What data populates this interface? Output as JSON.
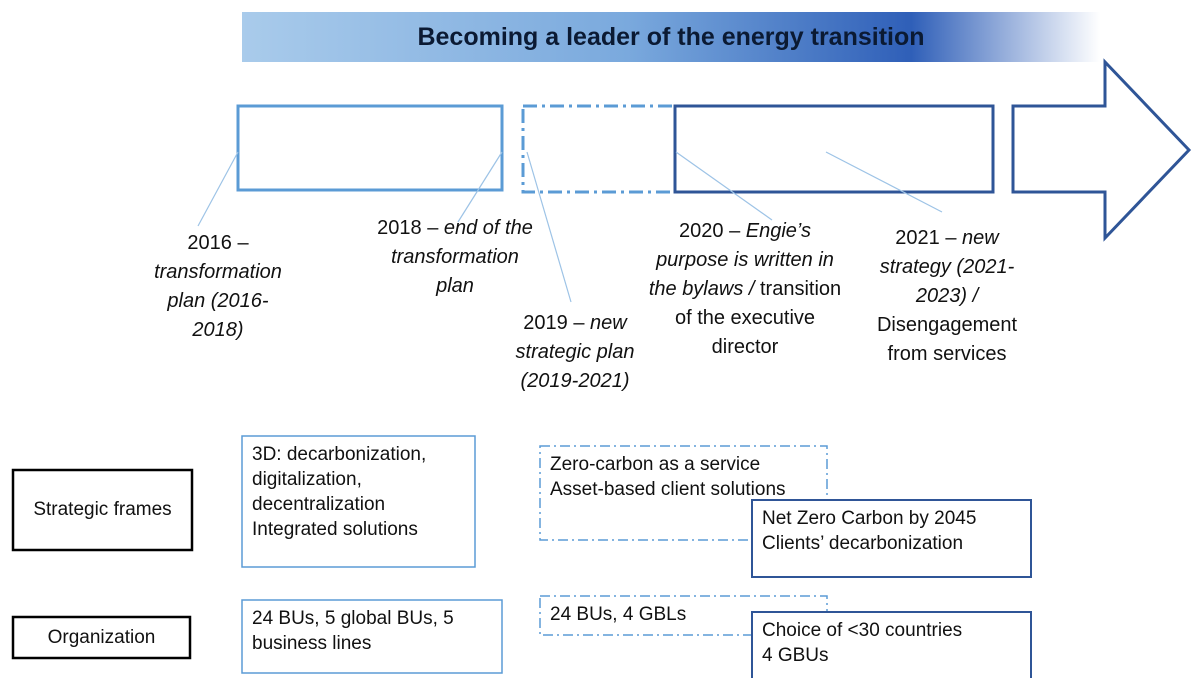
{
  "title": "Becoming a leader of the energy transition",
  "milestones": [
    {
      "year": "2016 –",
      "italic": "transformation plan (2016-2018)"
    },
    {
      "year": "2018 –",
      "italic": "end of the transformation plan"
    },
    {
      "year": "2019 –",
      "italic": "new strategic plan (2019-2021)"
    },
    {
      "year": "2020 –",
      "italic": "Engie’s purpose is written in the bylaws /",
      "normal": "transition of the executive director"
    },
    {
      "year": "2021 –",
      "italic": "new strategy (2021-2023) /",
      "normal": "Disengagement from services"
    }
  ],
  "rows": [
    {
      "label": "Strategic frames",
      "cells": [
        {
          "lines": [
            "3D: decarbonization, digitalization, decentralization",
            "Integrated solutions"
          ]
        },
        {
          "lines": [
            "Zero-carbon as a service",
            "Asset-based client solutions"
          ]
        },
        {
          "lines": [
            "Net Zero Carbon by 2045",
            "Clients’ decarbonization"
          ]
        }
      ]
    },
    {
      "label": "Organization",
      "cells": [
        {
          "lines": [
            "24 BUs, 5 global BUs, 5 business lines"
          ]
        },
        {
          "lines": [
            "24 BUs, 4 GBLs"
          ]
        },
        {
          "lines": [
            "Choice of <30 countries",
            "4 GBUs"
          ]
        }
      ]
    }
  ]
}
